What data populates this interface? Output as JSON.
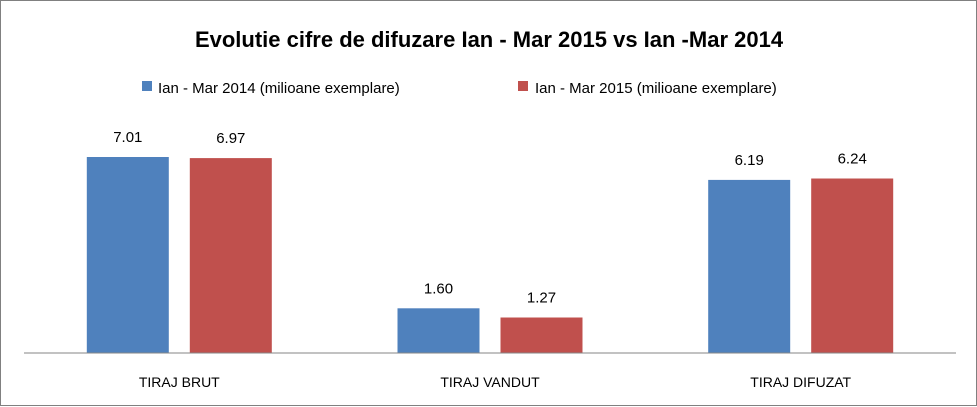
{
  "chart_data": {
    "type": "bar",
    "title": "Evolutie cifre de difuzare Ian - Mar 2015 vs Ian -Mar 2014",
    "xlabel": "",
    "ylabel": "",
    "categories": [
      "TIRAJ BRUT",
      "TIRAJ VANDUT",
      "TIRAJ DIFUZAT"
    ],
    "series": [
      {
        "name": "Ian - Mar 2014 (milioane exemplare)",
        "color": "#4F81BD",
        "values": [
          7.01,
          1.6,
          6.19
        ],
        "labels": [
          "7.01",
          "1.60",
          "6.19"
        ]
      },
      {
        "name": "Ian - Mar 2015 (milioane exemplare)",
        "color": "#C0504D",
        "values": [
          6.97,
          1.27,
          6.24
        ],
        "labels": [
          "6.97",
          "1.27",
          "6.24"
        ]
      }
    ],
    "ylim": [
      0,
      7.01
    ],
    "grid": false,
    "legend_position": "top",
    "show_y_axis": false
  }
}
